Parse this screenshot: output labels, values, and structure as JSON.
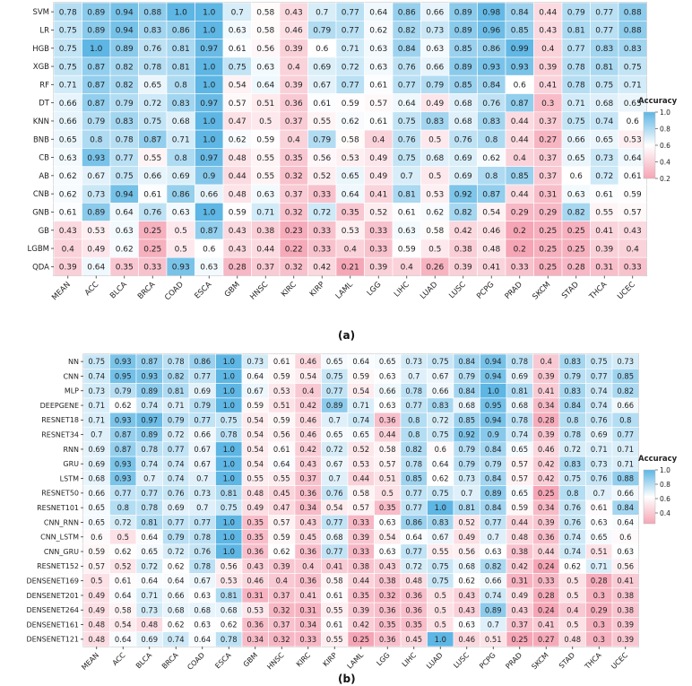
{
  "panel_labels": [
    "(a)",
    "(b)"
  ],
  "chart_data": [
    {
      "type": "heatmap",
      "colorbar": {
        "title": "Accuracy",
        "ticks": [
          "1.0",
          "0.8",
          "0.6",
          "0.4",
          "0.2"
        ],
        "range": [
          0.2,
          1.0
        ],
        "low_color": "#f5a5b5",
        "mid_color": "#ffffff",
        "high_color": "#5db6e4"
      },
      "columns": [
        "MEAN",
        "ACC",
        "BLCA",
        "BRCA",
        "COAD",
        "ESCA",
        "GBM",
        "HNSC",
        "KIRC",
        "KIRP",
        "LAML",
        "LGG",
        "LIHC",
        "LUAD",
        "LUSC",
        "PCPG",
        "PRAD",
        "SKCM",
        "STAD",
        "THCA",
        "UCEC"
      ],
      "rows": [
        "SVM",
        "LR",
        "HGB",
        "XGB",
        "RF",
        "DT",
        "KNN",
        "BNB",
        "CB",
        "AB",
        "CNB",
        "GNB",
        "GB",
        "LGBM",
        "QDA"
      ],
      "values": [
        [
          "0.78",
          "0.89",
          "0.94",
          "0.88",
          "1.0",
          "1.0",
          "0.7",
          "0.58",
          "0.43",
          "0.7",
          "0.77",
          "0.64",
          "0.86",
          "0.66",
          "0.89",
          "0.98",
          "0.84",
          "0.44",
          "0.79",
          "0.77",
          "0.88"
        ],
        [
          "0.75",
          "0.89",
          "0.94",
          "0.83",
          "0.86",
          "1.0",
          "0.63",
          "0.58",
          "0.46",
          "0.79",
          "0.77",
          "0.62",
          "0.82",
          "0.73",
          "0.89",
          "0.96",
          "0.85",
          "0.43",
          "0.81",
          "0.77",
          "0.88"
        ],
        [
          "0.75",
          "1.0",
          "0.89",
          "0.76",
          "0.81",
          "0.97",
          "0.61",
          "0.56",
          "0.39",
          "0.6",
          "0.71",
          "0.63",
          "0.84",
          "0.63",
          "0.85",
          "0.86",
          "0.99",
          "0.4",
          "0.77",
          "0.83",
          "0.83"
        ],
        [
          "0.75",
          "0.87",
          "0.82",
          "0.78",
          "0.81",
          "1.0",
          "0.75",
          "0.63",
          "0.4",
          "0.69",
          "0.72",
          "0.63",
          "0.76",
          "0.66",
          "0.89",
          "0.93",
          "0.93",
          "0.39",
          "0.78",
          "0.81",
          "0.75"
        ],
        [
          "0.71",
          "0.87",
          "0.82",
          "0.65",
          "0.8",
          "1.0",
          "0.54",
          "0.64",
          "0.39",
          "0.67",
          "0.77",
          "0.61",
          "0.77",
          "0.79",
          "0.85",
          "0.84",
          "0.6",
          "0.41",
          "0.78",
          "0.75",
          "0.71"
        ],
        [
          "0.66",
          "0.87",
          "0.79",
          "0.72",
          "0.83",
          "0.97",
          "0.57",
          "0.51",
          "0.36",
          "0.61",
          "0.59",
          "0.57",
          "0.64",
          "0.49",
          "0.68",
          "0.76",
          "0.87",
          "0.3",
          "0.71",
          "0.68",
          "0.65"
        ],
        [
          "0.66",
          "0.79",
          "0.83",
          "0.75",
          "0.68",
          "1.0",
          "0.47",
          "0.5",
          "0.37",
          "0.55",
          "0.62",
          "0.61",
          "0.75",
          "0.83",
          "0.68",
          "0.83",
          "0.44",
          "0.37",
          "0.75",
          "0.74",
          "0.6"
        ],
        [
          "0.65",
          "0.8",
          "0.78",
          "0.87",
          "0.71",
          "1.0",
          "0.62",
          "0.59",
          "0.4",
          "0.79",
          "0.58",
          "0.4",
          "0.76",
          "0.5",
          "0.76",
          "0.8",
          "0.44",
          "0.27",
          "0.66",
          "0.65",
          "0.53"
        ],
        [
          "0.63",
          "0.93",
          "0.77",
          "0.55",
          "0.8",
          "0.97",
          "0.48",
          "0.55",
          "0.35",
          "0.56",
          "0.53",
          "0.49",
          "0.75",
          "0.68",
          "0.69",
          "0.62",
          "0.4",
          "0.37",
          "0.65",
          "0.73",
          "0.64"
        ],
        [
          "0.62",
          "0.67",
          "0.75",
          "0.66",
          "0.69",
          "0.9",
          "0.44",
          "0.55",
          "0.32",
          "0.52",
          "0.65",
          "0.49",
          "0.7",
          "0.5",
          "0.69",
          "0.8",
          "0.85",
          "0.37",
          "0.6",
          "0.72",
          "0.61"
        ],
        [
          "0.62",
          "0.73",
          "0.94",
          "0.61",
          "0.86",
          "0.66",
          "0.48",
          "0.63",
          "0.37",
          "0.33",
          "0.64",
          "0.41",
          "0.81",
          "0.53",
          "0.92",
          "0.87",
          "0.44",
          "0.31",
          "0.63",
          "0.61",
          "0.59"
        ],
        [
          "0.61",
          "0.89",
          "0.64",
          "0.76",
          "0.63",
          "1.0",
          "0.59",
          "0.71",
          "0.32",
          "0.72",
          "0.35",
          "0.52",
          "0.61",
          "0.62",
          "0.82",
          "0.54",
          "0.29",
          "0.29",
          "0.82",
          "0.55",
          "0.57"
        ],
        [
          "0.43",
          "0.53",
          "0.63",
          "0.25",
          "0.5",
          "0.87",
          "0.43",
          "0.38",
          "0.23",
          "0.33",
          "0.53",
          "0.33",
          "0.63",
          "0.58",
          "0.42",
          "0.46",
          "0.2",
          "0.25",
          "0.25",
          "0.41",
          "0.43"
        ],
        [
          "0.4",
          "0.49",
          "0.62",
          "0.25",
          "0.5",
          "0.6",
          "0.43",
          "0.44",
          "0.22",
          "0.33",
          "0.4",
          "0.33",
          "0.59",
          "0.5",
          "0.38",
          "0.48",
          "0.2",
          "0.25",
          "0.25",
          "0.39",
          "0.4"
        ],
        [
          "0.39",
          "0.64",
          "0.35",
          "0.33",
          "0.93",
          "0.63",
          "0.28",
          "0.37",
          "0.32",
          "0.42",
          "0.21",
          "0.39",
          "0.4",
          "0.26",
          "0.39",
          "0.41",
          "0.33",
          "0.25",
          "0.28",
          "0.31",
          "0.33"
        ]
      ]
    },
    {
      "type": "heatmap",
      "colorbar": {
        "title": "Accuracy",
        "ticks": [
          "1.0",
          "0.8",
          "0.6",
          "0.4"
        ],
        "range": [
          0.25,
          1.0
        ],
        "low_color": "#f5a5b5",
        "mid_color": "#ffffff",
        "high_color": "#5db6e4"
      },
      "columns": [
        "MEAN",
        "ACC",
        "BLCA",
        "BRCA",
        "COAD",
        "ESCA",
        "GBM",
        "HNSC",
        "KIRC",
        "KIRP",
        "LAML",
        "LGG",
        "LIHC",
        "LUAD",
        "LUSC",
        "PCPG",
        "PRAD",
        "SKCM",
        "STAD",
        "THCA",
        "UCEC"
      ],
      "rows": [
        "NN",
        "CNN",
        "MLP",
        "DEEPGENE",
        "RESNET18",
        "RESNET34",
        "RNN",
        "GRU",
        "LSTM",
        "RESNET50",
        "RESNET101",
        "CNN_RNN",
        "CNN_LSTM",
        "CNN_GRU",
        "RESNET152",
        "DENSENET169",
        "DENSENET201",
        "DENSENET264",
        "DENSENET161",
        "DENSENET121"
      ],
      "values": [
        [
          "0.75",
          "0.93",
          "0.87",
          "0.78",
          "0.86",
          "1.0",
          "0.73",
          "0.61",
          "0.46",
          "0.65",
          "0.64",
          "0.65",
          "0.73",
          "0.75",
          "0.84",
          "0.94",
          "0.78",
          "0.4",
          "0.83",
          "0.75",
          "0.73"
        ],
        [
          "0.74",
          "0.95",
          "0.93",
          "0.82",
          "0.77",
          "1.0",
          "0.64",
          "0.59",
          "0.54",
          "0.75",
          "0.59",
          "0.63",
          "0.7",
          "0.67",
          "0.79",
          "0.94",
          "0.69",
          "0.39",
          "0.79",
          "0.77",
          "0.85"
        ],
        [
          "0.73",
          "0.79",
          "0.89",
          "0.81",
          "0.69",
          "1.0",
          "0.67",
          "0.53",
          "0.4",
          "0.77",
          "0.54",
          "0.66",
          "0.78",
          "0.66",
          "0.84",
          "1.0",
          "0.81",
          "0.41",
          "0.83",
          "0.74",
          "0.82"
        ],
        [
          "0.71",
          "0.62",
          "0.74",
          "0.71",
          "0.79",
          "1.0",
          "0.59",
          "0.51",
          "0.42",
          "0.89",
          "0.71",
          "0.63",
          "0.77",
          "0.83",
          "0.68",
          "0.95",
          "0.68",
          "0.34",
          "0.84",
          "0.74",
          "0.66"
        ],
        [
          "0.71",
          "0.93",
          "0.97",
          "0.79",
          "0.77",
          "0.75",
          "0.54",
          "0.59",
          "0.46",
          "0.7",
          "0.74",
          "0.36",
          "0.8",
          "0.72",
          "0.85",
          "0.94",
          "0.78",
          "0.28",
          "0.8",
          "0.76",
          "0.8"
        ],
        [
          "0.7",
          "0.87",
          "0.89",
          "0.72",
          "0.66",
          "0.78",
          "0.54",
          "0.56",
          "0.46",
          "0.65",
          "0.65",
          "0.44",
          "0.8",
          "0.75",
          "0.92",
          "0.9",
          "0.74",
          "0.39",
          "0.78",
          "0.69",
          "0.77"
        ],
        [
          "0.69",
          "0.87",
          "0.78",
          "0.77",
          "0.67",
          "1.0",
          "0.54",
          "0.61",
          "0.42",
          "0.72",
          "0.52",
          "0.58",
          "0.82",
          "0.6",
          "0.79",
          "0.84",
          "0.65",
          "0.46",
          "0.72",
          "0.71",
          "0.71"
        ],
        [
          "0.69",
          "0.93",
          "0.74",
          "0.74",
          "0.67",
          "1.0",
          "0.54",
          "0.64",
          "0.43",
          "0.67",
          "0.53",
          "0.57",
          "0.78",
          "0.64",
          "0.79",
          "0.79",
          "0.57",
          "0.42",
          "0.83",
          "0.73",
          "0.71"
        ],
        [
          "0.68",
          "0.93",
          "0.7",
          "0.74",
          "0.7",
          "1.0",
          "0.55",
          "0.55",
          "0.37",
          "0.7",
          "0.44",
          "0.51",
          "0.85",
          "0.62",
          "0.73",
          "0.84",
          "0.57",
          "0.42",
          "0.75",
          "0.76",
          "0.88"
        ],
        [
          "0.66",
          "0.77",
          "0.77",
          "0.76",
          "0.73",
          "0.81",
          "0.48",
          "0.45",
          "0.36",
          "0.76",
          "0.58",
          "0.5",
          "0.77",
          "0.75",
          "0.7",
          "0.89",
          "0.65",
          "0.25",
          "0.8",
          "0.7",
          "0.66"
        ],
        [
          "0.65",
          "0.8",
          "0.78",
          "0.69",
          "0.7",
          "0.75",
          "0.49",
          "0.47",
          "0.34",
          "0.54",
          "0.57",
          "0.35",
          "0.77",
          "1.0",
          "0.81",
          "0.84",
          "0.59",
          "0.34",
          "0.76",
          "0.61",
          "0.84"
        ],
        [
          "0.65",
          "0.72",
          "0.81",
          "0.77",
          "0.77",
          "1.0",
          "0.35",
          "0.57",
          "0.43",
          "0.77",
          "0.33",
          "0.63",
          "0.86",
          "0.83",
          "0.52",
          "0.77",
          "0.44",
          "0.39",
          "0.76",
          "0.63",
          "0.64"
        ],
        [
          "0.6",
          "0.5",
          "0.64",
          "0.79",
          "0.78",
          "1.0",
          "0.35",
          "0.59",
          "0.45",
          "0.68",
          "0.39",
          "0.54",
          "0.64",
          "0.67",
          "0.49",
          "0.7",
          "0.48",
          "0.36",
          "0.74",
          "0.65",
          "0.6"
        ],
        [
          "0.59",
          "0.62",
          "0.65",
          "0.72",
          "0.76",
          "1.0",
          "0.36",
          "0.62",
          "0.36",
          "0.77",
          "0.33",
          "0.63",
          "0.77",
          "0.55",
          "0.56",
          "0.63",
          "0.38",
          "0.44",
          "0.74",
          "0.51",
          "0.63"
        ],
        [
          "0.57",
          "0.52",
          "0.72",
          "0.62",
          "0.78",
          "0.56",
          "0.43",
          "0.39",
          "0.4",
          "0.41",
          "0.38",
          "0.43",
          "0.72",
          "0.75",
          "0.68",
          "0.82",
          "0.42",
          "0.24",
          "0.62",
          "0.71",
          "0.56"
        ],
        [
          "0.5",
          "0.61",
          "0.64",
          "0.64",
          "0.67",
          "0.53",
          "0.46",
          "0.4",
          "0.36",
          "0.58",
          "0.44",
          "0.38",
          "0.48",
          "0.75",
          "0.62",
          "0.66",
          "0.31",
          "0.33",
          "0.5",
          "0.28",
          "0.41"
        ],
        [
          "0.49",
          "0.64",
          "0.71",
          "0.66",
          "0.63",
          "0.81",
          "0.31",
          "0.37",
          "0.41",
          "0.61",
          "0.35",
          "0.32",
          "0.36",
          "0.5",
          "0.43",
          "0.74",
          "0.49",
          "0.28",
          "0.5",
          "0.3",
          "0.38"
        ],
        [
          "0.49",
          "0.58",
          "0.73",
          "0.68",
          "0.68",
          "0.68",
          "0.53",
          "0.32",
          "0.31",
          "0.55",
          "0.39",
          "0.36",
          "0.36",
          "0.5",
          "0.43",
          "0.89",
          "0.43",
          "0.24",
          "0.4",
          "0.29",
          "0.38"
        ],
        [
          "0.48",
          "0.54",
          "0.48",
          "0.62",
          "0.63",
          "0.62",
          "0.36",
          "0.37",
          "0.34",
          "0.61",
          "0.42",
          "0.35",
          "0.35",
          "0.5",
          "0.63",
          "0.7",
          "0.37",
          "0.41",
          "0.5",
          "0.3",
          "0.39"
        ],
        [
          "0.48",
          "0.64",
          "0.69",
          "0.74",
          "0.64",
          "0.78",
          "0.34",
          "0.32",
          "0.33",
          "0.55",
          "0.25",
          "0.36",
          "0.45",
          "1.0",
          "0.46",
          "0.51",
          "0.25",
          "0.27",
          "0.48",
          "0.3",
          "0.39"
        ]
      ]
    }
  ]
}
